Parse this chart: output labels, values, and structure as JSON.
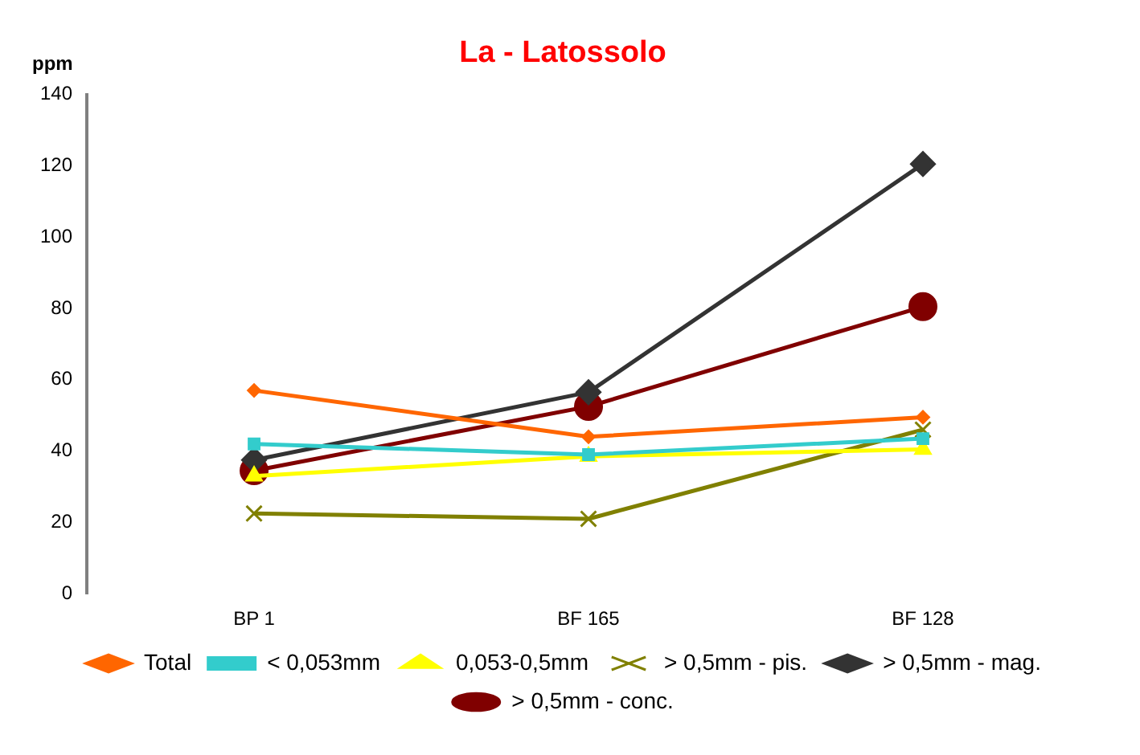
{
  "chart_data": {
    "type": "line",
    "title": "La - Latossolo",
    "ylabel": "ppm",
    "categories": [
      "BP 1",
      "BF 165",
      "BF 128"
    ],
    "ylim": [
      0,
      140
    ],
    "yticks": [
      0,
      20,
      40,
      60,
      80,
      100,
      120,
      140
    ],
    "grid": false,
    "legend": "bottom",
    "series": [
      {
        "name": "Total",
        "color": "#ff6600",
        "marker": "diamond",
        "values": [
          57,
          44,
          49.5
        ]
      },
      {
        "name": "< 0,053mm",
        "color": "#33cccc",
        "marker": "square",
        "values": [
          42,
          39,
          43.5
        ]
      },
      {
        "name": "0,053-0,5mm",
        "color": "#ffff00",
        "marker": "triangle",
        "values": [
          33,
          38.5,
          40.5
        ]
      },
      {
        "name": "> 0,5mm - pis.",
        "color": "#808000",
        "marker": "cross",
        "values": [
          22.5,
          21,
          46
        ]
      },
      {
        "name": "> 0,5mm - mag.",
        "color": "#333333",
        "marker": "diamond",
        "values": [
          37.5,
          56.5,
          120.5
        ]
      },
      {
        "name": "> 0,5mm - conc.",
        "color": "#800000",
        "marker": "circle",
        "values": [
          34.5,
          52.5,
          80.5
        ]
      }
    ]
  }
}
